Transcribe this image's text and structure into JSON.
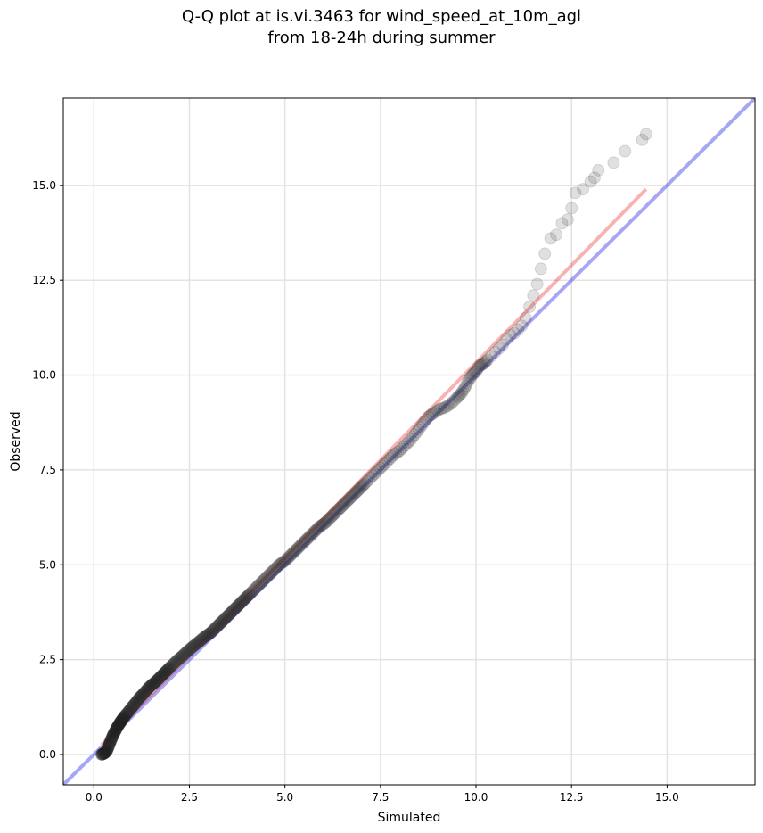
{
  "chart_data": {
    "type": "scatter",
    "title_line1": "Q-Q plot at is.vi.3463 for wind_speed_at_10m_agl",
    "title_line2": "from 18-24h during summer",
    "xlabel": "Simulated",
    "ylabel": "Observed",
    "xlim": [
      -0.8,
      17.3
    ],
    "ylim": [
      -0.8,
      17.3
    ],
    "grid": true,
    "ticks": [
      0.0,
      2.5,
      5.0,
      7.5,
      10.0,
      12.5,
      15.0
    ],
    "tick_labels": [
      "0.0",
      "2.5",
      "5.0",
      "7.5",
      "10.0",
      "12.5",
      "15.0"
    ],
    "identity_line": {
      "x": [
        -0.8,
        17.3
      ],
      "y": [
        -0.8,
        17.3
      ],
      "color": "#0000dd"
    },
    "fit_line": {
      "x": [
        0.2,
        14.45
      ],
      "y": [
        0.25,
        14.9
      ],
      "color": "#ee2222"
    },
    "points": {
      "x": [
        0.2,
        0.25,
        0.3,
        0.35,
        0.4,
        0.45,
        0.5,
        0.55,
        0.6,
        0.65,
        0.7,
        0.75,
        0.8,
        0.9,
        1.0,
        1.1,
        1.2,
        1.3,
        1.4,
        1.5,
        1.6,
        1.7,
        1.8,
        1.9,
        2.0,
        2.15,
        2.3,
        2.45,
        2.6,
        2.75,
        2.9,
        3.05,
        3.2,
        3.35,
        3.5,
        3.65,
        3.8,
        3.95,
        4.1,
        4.25,
        4.4,
        4.55,
        4.7,
        4.85,
        5.0,
        5.15,
        5.3,
        5.45,
        5.6,
        5.75,
        5.9,
        6.05,
        6.2,
        6.35,
        6.5,
        6.65,
        6.8,
        6.95,
        7.1,
        7.25,
        7.4,
        7.55,
        7.7,
        7.85,
        8.0,
        8.15,
        8.3,
        8.45,
        8.6,
        8.75,
        8.9,
        9.05,
        9.2,
        9.35,
        9.5,
        9.6,
        9.7,
        9.8,
        9.9,
        10.0,
        10.1,
        10.2,
        10.3,
        10.4,
        10.5,
        10.6,
        10.7,
        10.8,
        10.9,
        11.0,
        11.1,
        11.2,
        11.3,
        11.4,
        11.5,
        11.6,
        11.7,
        11.8,
        11.95,
        12.1,
        12.25,
        12.4,
        12.5,
        12.6,
        12.8,
        13.0,
        13.1,
        13.2,
        13.6,
        13.9,
        14.35,
        14.45
      ],
      "y": [
        0.0,
        0.02,
        0.05,
        0.12,
        0.25,
        0.38,
        0.5,
        0.6,
        0.7,
        0.78,
        0.86,
        0.93,
        1.0,
        1.12,
        1.25,
        1.37,
        1.5,
        1.6,
        1.72,
        1.82,
        1.9,
        2.0,
        2.1,
        2.2,
        2.3,
        2.45,
        2.58,
        2.72,
        2.85,
        2.97,
        3.1,
        3.2,
        3.35,
        3.5,
        3.65,
        3.8,
        3.95,
        4.1,
        4.25,
        4.4,
        4.55,
        4.7,
        4.85,
        5.0,
        5.1,
        5.25,
        5.4,
        5.55,
        5.7,
        5.85,
        6.0,
        6.1,
        6.25,
        6.4,
        6.55,
        6.7,
        6.85,
        7.0,
        7.15,
        7.3,
        7.45,
        7.6,
        7.75,
        7.9,
        8.0,
        8.15,
        8.3,
        8.5,
        8.7,
        8.9,
        9.0,
        9.1,
        9.15,
        9.25,
        9.4,
        9.5,
        9.65,
        9.85,
        10.0,
        10.1,
        10.25,
        10.3,
        10.4,
        10.5,
        10.6,
        10.7,
        10.8,
        10.95,
        11.05,
        11.1,
        11.2,
        11.3,
        11.5,
        11.8,
        12.1,
        12.4,
        12.8,
        13.2,
        13.6,
        13.7,
        14.0,
        14.1,
        14.4,
        14.8,
        14.9,
        15.1,
        15.2,
        15.4,
        15.6,
        15.9,
        16.2,
        16.35
      ]
    }
  }
}
